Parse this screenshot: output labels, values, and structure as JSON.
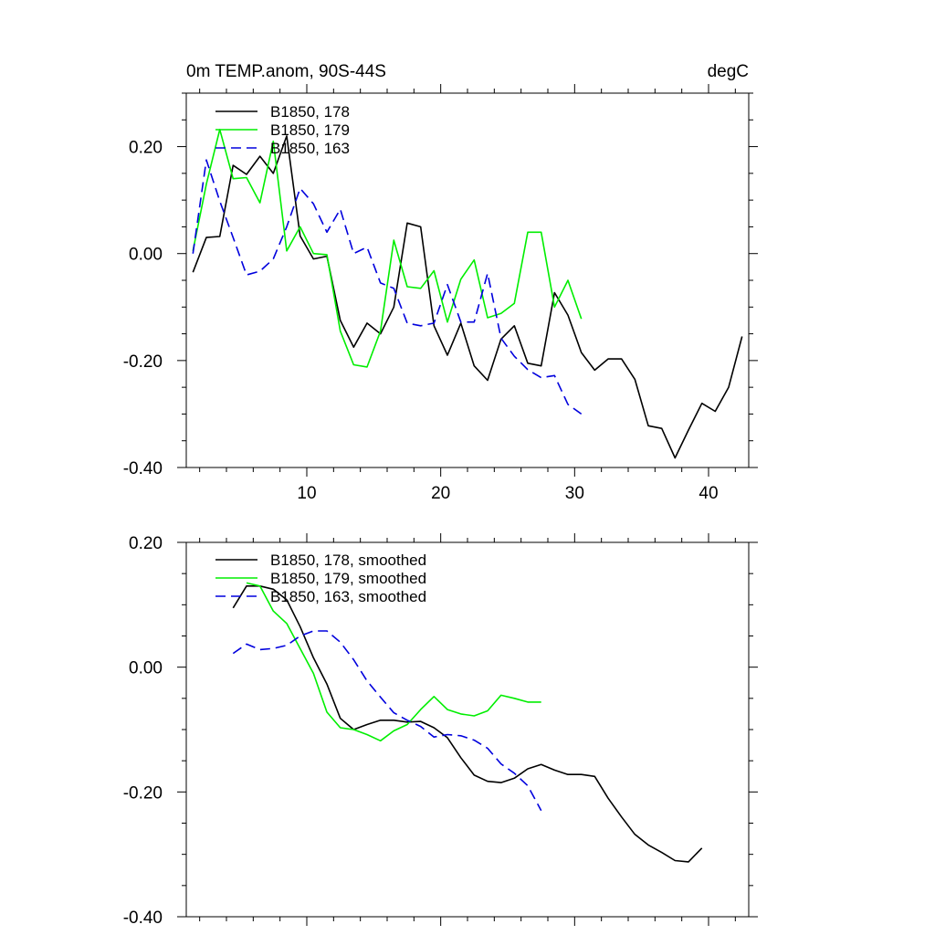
{
  "header": {
    "title": "0m TEMP.anom, 90S-44S",
    "units": "degC"
  },
  "chart_data": [
    {
      "type": "line",
      "title": "0m TEMP.anom, 90S-44S",
      "units": "degC",
      "xlim": [
        1,
        43
      ],
      "ylim": [
        -0.4,
        0.3
      ],
      "x_ticks": [
        10,
        20,
        30,
        40
      ],
      "x_tick_labels": [
        "10",
        "20",
        "30",
        "40"
      ],
      "y_ticks": [
        -0.4,
        -0.2,
        0.0,
        0.2
      ],
      "y_tick_labels": [
        "-0.40",
        "-0.20",
        "0.00",
        "0.20"
      ],
      "legend_position": "top-left",
      "series": [
        {
          "name": "B1850, 178",
          "color": "#000000",
          "dash": "solid",
          "x": [
            1.5,
            2.5,
            3.5,
            4.5,
            5.5,
            6.5,
            7.5,
            8.5,
            9.5,
            10.5,
            11.5,
            12.5,
            13.5,
            14.5,
            15.5,
            16.5,
            17.5,
            18.5,
            19.5,
            20.5,
            21.5,
            22.5,
            23.5,
            24.5,
            25.5,
            26.5,
            27.5,
            28.5,
            29.5,
            30.5,
            31.5,
            32.5,
            33.5,
            34.5,
            35.5,
            36.5,
            37.5,
            38.5,
            39.5,
            40.5,
            41.5,
            42.5
          ],
          "values": [
            -0.035,
            0.03,
            0.032,
            0.165,
            0.148,
            0.182,
            0.15,
            0.22,
            0.033,
            -0.01,
            -0.005,
            -0.125,
            -0.175,
            -0.13,
            -0.15,
            -0.1,
            0.057,
            0.05,
            -0.135,
            -0.19,
            -0.13,
            -0.21,
            -0.237,
            -0.16,
            -0.135,
            -0.205,
            -0.21,
            -0.073,
            -0.115,
            -0.185,
            -0.218,
            -0.197,
            -0.197,
            -0.235,
            -0.322,
            -0.327,
            -0.382,
            -0.33,
            -0.28,
            -0.295,
            -0.25,
            -0.155
          ]
        },
        {
          "name": "B1850, 179",
          "color": "#00ee00",
          "dash": "solid",
          "x": [
            1.5,
            2.5,
            3.5,
            4.5,
            5.5,
            6.5,
            7.5,
            8.5,
            9.5,
            10.5,
            11.5,
            12.5,
            13.5,
            14.5,
            15.5,
            16.5,
            17.5,
            18.5,
            19.5,
            20.5,
            21.5,
            22.5,
            23.5,
            24.5,
            25.5,
            26.5,
            27.5,
            28.5,
            29.5,
            30.5
          ],
          "values": [
            0.005,
            0.13,
            0.232,
            0.14,
            0.142,
            0.095,
            0.21,
            0.005,
            0.05,
            0.0,
            -0.002,
            -0.145,
            -0.208,
            -0.212,
            -0.145,
            0.025,
            -0.062,
            -0.065,
            -0.032,
            -0.128,
            -0.048,
            -0.012,
            -0.12,
            -0.112,
            -0.093,
            0.04,
            0.04,
            -0.1,
            -0.05,
            -0.122
          ]
        },
        {
          "name": "B1850, 163",
          "color": "#0000dd",
          "dash": "dashed",
          "x": [
            1.5,
            2.5,
            3.5,
            4.5,
            5.5,
            6.5,
            7.5,
            8.5,
            9.5,
            10.5,
            11.5,
            12.5,
            13.5,
            14.5,
            15.5,
            16.5,
            17.5,
            18.5,
            19.5,
            20.5,
            21.5,
            22.5,
            23.5,
            24.5,
            25.5,
            26.5,
            27.5,
            28.5,
            29.5,
            30.5
          ],
          "values": [
            0.0,
            0.175,
            0.098,
            0.03,
            -0.04,
            -0.033,
            -0.01,
            0.05,
            0.122,
            0.093,
            0.04,
            0.083,
            0.0,
            0.012,
            -0.055,
            -0.065,
            -0.13,
            -0.135,
            -0.13,
            -0.058,
            -0.128,
            -0.128,
            -0.037,
            -0.158,
            -0.192,
            -0.217,
            -0.232,
            -0.228,
            -0.282,
            -0.3
          ]
        }
      ]
    },
    {
      "type": "line",
      "xlim": [
        1,
        43
      ],
      "ylim": [
        -0.4,
        0.2
      ],
      "x_ticks": [
        10,
        20,
        30,
        40
      ],
      "y_ticks": [
        -0.4,
        -0.2,
        0.0,
        0.2
      ],
      "y_tick_labels": [
        "-0.40",
        "-0.20",
        "0.00",
        "0.20"
      ],
      "legend_position": "top-left",
      "series": [
        {
          "name": "B1850, 178, smoothed",
          "color": "#000000",
          "dash": "solid",
          "x": [
            4.5,
            5.5,
            6.5,
            7.5,
            8.5,
            9.5,
            10.5,
            11.5,
            12.5,
            13.5,
            14.5,
            15.5,
            16.5,
            17.5,
            18.5,
            19.5,
            20.5,
            21.5,
            22.5,
            23.5,
            24.5,
            25.5,
            26.5,
            27.5,
            28.5,
            29.5,
            30.5,
            31.5,
            32.5,
            33.5,
            34.5,
            35.5,
            36.5,
            37.5,
            38.5,
            39.5
          ],
          "values": [
            0.095,
            0.13,
            0.13,
            0.125,
            0.108,
            0.065,
            0.015,
            -0.027,
            -0.082,
            -0.1,
            -0.092,
            -0.085,
            -0.085,
            -0.088,
            -0.087,
            -0.097,
            -0.113,
            -0.145,
            -0.173,
            -0.183,
            -0.185,
            -0.178,
            -0.163,
            -0.156,
            -0.165,
            -0.172,
            -0.172,
            -0.175,
            -0.21,
            -0.24,
            -0.268,
            -0.285,
            -0.297,
            -0.31,
            -0.312,
            -0.29
          ]
        },
        {
          "name": "B1850, 179, smoothed",
          "color": "#00ee00",
          "dash": "solid",
          "x": [
            5.5,
            6.5,
            7.5,
            8.5,
            9.5,
            10.5,
            11.5,
            12.5,
            13.5,
            14.5,
            15.5,
            16.5,
            17.5,
            18.5,
            19.5,
            20.5,
            21.5,
            22.5,
            23.5,
            24.5,
            25.5,
            26.5,
            27.5
          ],
          "values": [
            0.135,
            0.13,
            0.09,
            0.07,
            0.03,
            -0.01,
            -0.072,
            -0.097,
            -0.1,
            -0.108,
            -0.118,
            -0.102,
            -0.092,
            -0.068,
            -0.047,
            -0.068,
            -0.075,
            -0.078,
            -0.07,
            -0.045,
            -0.05,
            -0.056,
            -0.056
          ]
        },
        {
          "name": "B1850, 163, smoothed",
          "color": "#0000dd",
          "dash": "dashed",
          "x": [
            4.5,
            5.5,
            6.5,
            7.5,
            8.5,
            9.5,
            10.5,
            11.5,
            12.5,
            13.5,
            14.5,
            15.5,
            16.5,
            17.5,
            18.5,
            19.5,
            20.5,
            21.5,
            22.5,
            23.5,
            24.5,
            25.5,
            26.5,
            27.5
          ],
          "values": [
            0.022,
            0.037,
            0.028,
            0.03,
            0.035,
            0.05,
            0.058,
            0.058,
            0.04,
            0.012,
            -0.022,
            -0.048,
            -0.073,
            -0.085,
            -0.095,
            -0.112,
            -0.108,
            -0.11,
            -0.117,
            -0.13,
            -0.155,
            -0.17,
            -0.19,
            -0.23
          ]
        }
      ]
    }
  ]
}
